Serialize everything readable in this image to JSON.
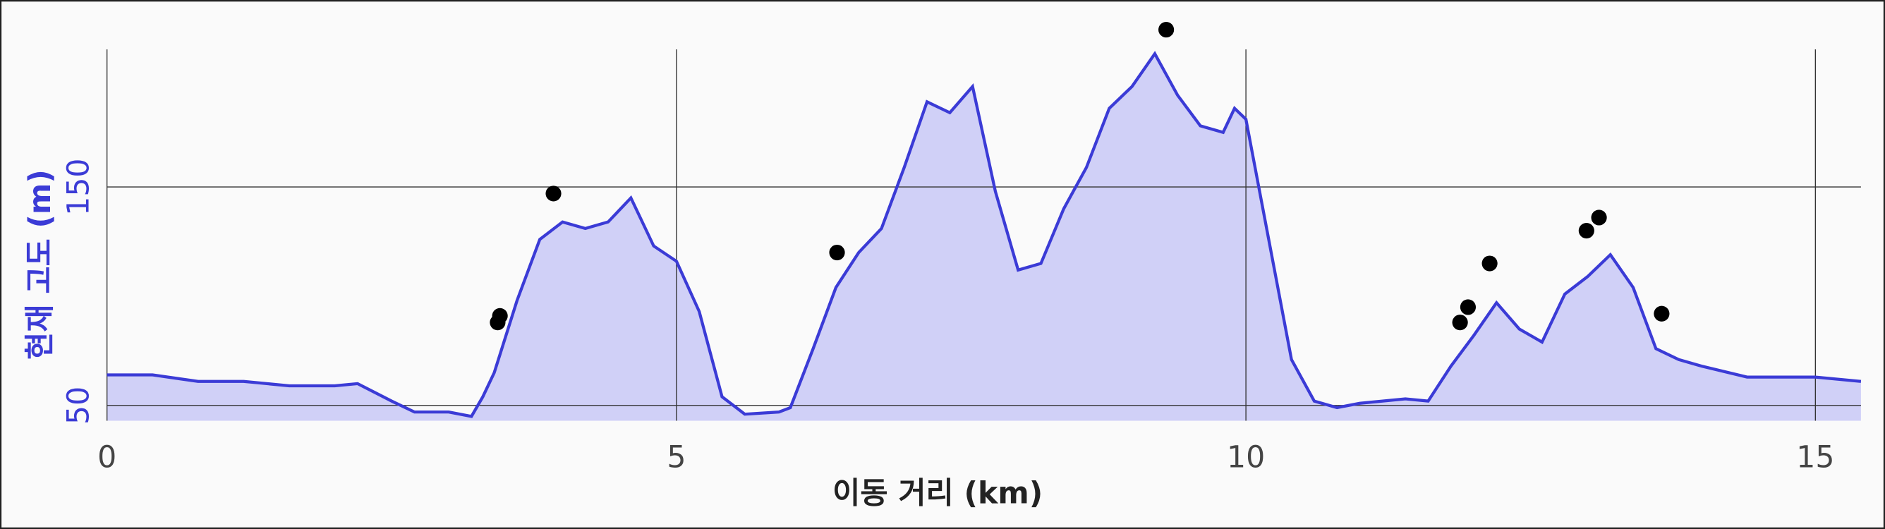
{
  "chart_data": {
    "type": "line",
    "xlabel": "이동 거리 (km)",
    "ylabel": "현재 고도 (m)",
    "x": [
      0,
      0.4,
      0.8,
      1.2,
      1.6,
      2.0,
      2.2,
      2.5,
      2.7,
      3.0,
      3.2,
      3.3,
      3.4,
      3.6,
      3.8,
      4.0,
      4.2,
      4.4,
      4.6,
      4.8,
      5.0,
      5.2,
      5.4,
      5.6,
      5.9,
      6.0,
      6.2,
      6.4,
      6.6,
      6.8,
      7.0,
      7.2,
      7.4,
      7.6,
      7.8,
      8.0,
      8.2,
      8.4,
      8.6,
      8.8,
      9.0,
      9.2,
      9.4,
      9.6,
      9.8,
      9.9,
      10.0,
      10.2,
      10.4,
      10.6,
      10.8,
      11.0,
      11.4,
      11.6,
      11.8,
      12.0,
      12.2,
      12.4,
      12.6,
      12.8,
      13.0,
      13.2,
      13.4,
      13.6,
      13.8,
      14.0,
      14.4,
      14.8,
      15.0,
      15.4
    ],
    "values": [
      64,
      64,
      61,
      61,
      59,
      59,
      60,
      52,
      47,
      47,
      45,
      54,
      65,
      98,
      126,
      134,
      131,
      134,
      145,
      123,
      116,
      93,
      54,
      46,
      47,
      49,
      76,
      104,
      120,
      131,
      159,
      189,
      184,
      196,
      148,
      112,
      115,
      140,
      159,
      186,
      196,
      211,
      192,
      178,
      175,
      186,
      181,
      126,
      71,
      52,
      49,
      51,
      53,
      52,
      68,
      82,
      97,
      85,
      79,
      101,
      109,
      119,
      104,
      76,
      71,
      68,
      63,
      63,
      63,
      61
    ],
    "color": "#3b3bd6",
    "fill": "#d0d0f7",
    "markers": {
      "x": [
        3.43,
        3.45,
        3.92,
        6.41,
        9.3,
        11.88,
        11.95,
        12.14,
        12.99,
        13.1,
        13.65
      ],
      "y": [
        88,
        91,
        147,
        120,
        222,
        88,
        95,
        115,
        130,
        136,
        92
      ],
      "color": "#000000"
    },
    "xlim": [
      0,
      15.4
    ],
    "ylim": [
      43,
      213
    ],
    "xticks": [
      0,
      5,
      10,
      15
    ],
    "yticks": [
      50,
      150
    ],
    "grid": true
  }
}
